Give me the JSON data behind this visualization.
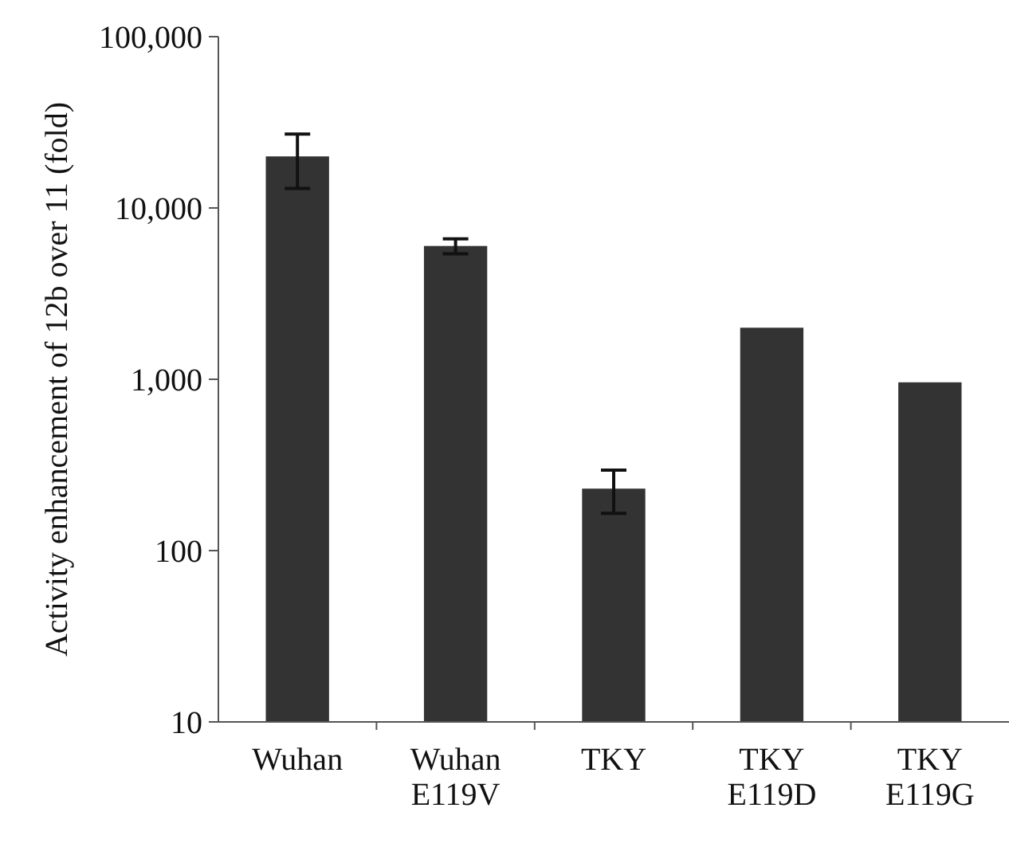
{
  "chart_data": {
    "type": "bar",
    "ylabel": "Activity enhancement of 12b over 11 (fold)",
    "categories": [
      "Wuhan",
      "Wuhan\nE119V",
      "TKY",
      "TKY\nE119D",
      "TKY\nE119G"
    ],
    "values": [
      20000,
      6000,
      230,
      2000,
      960
    ],
    "errors": [
      7000,
      600,
      65,
      null,
      null
    ],
    "color": "#333333",
    "log": true,
    "ylim": [
      10,
      100000
    ],
    "yticks": [
      {
        "value": 10,
        "label": "10"
      },
      {
        "value": 100,
        "label": "100"
      },
      {
        "value": 1000,
        "label": "1,000"
      },
      {
        "value": 10000,
        "label": "10,000"
      },
      {
        "value": 100000,
        "label": "100,000"
      }
    ],
    "grid": false
  }
}
